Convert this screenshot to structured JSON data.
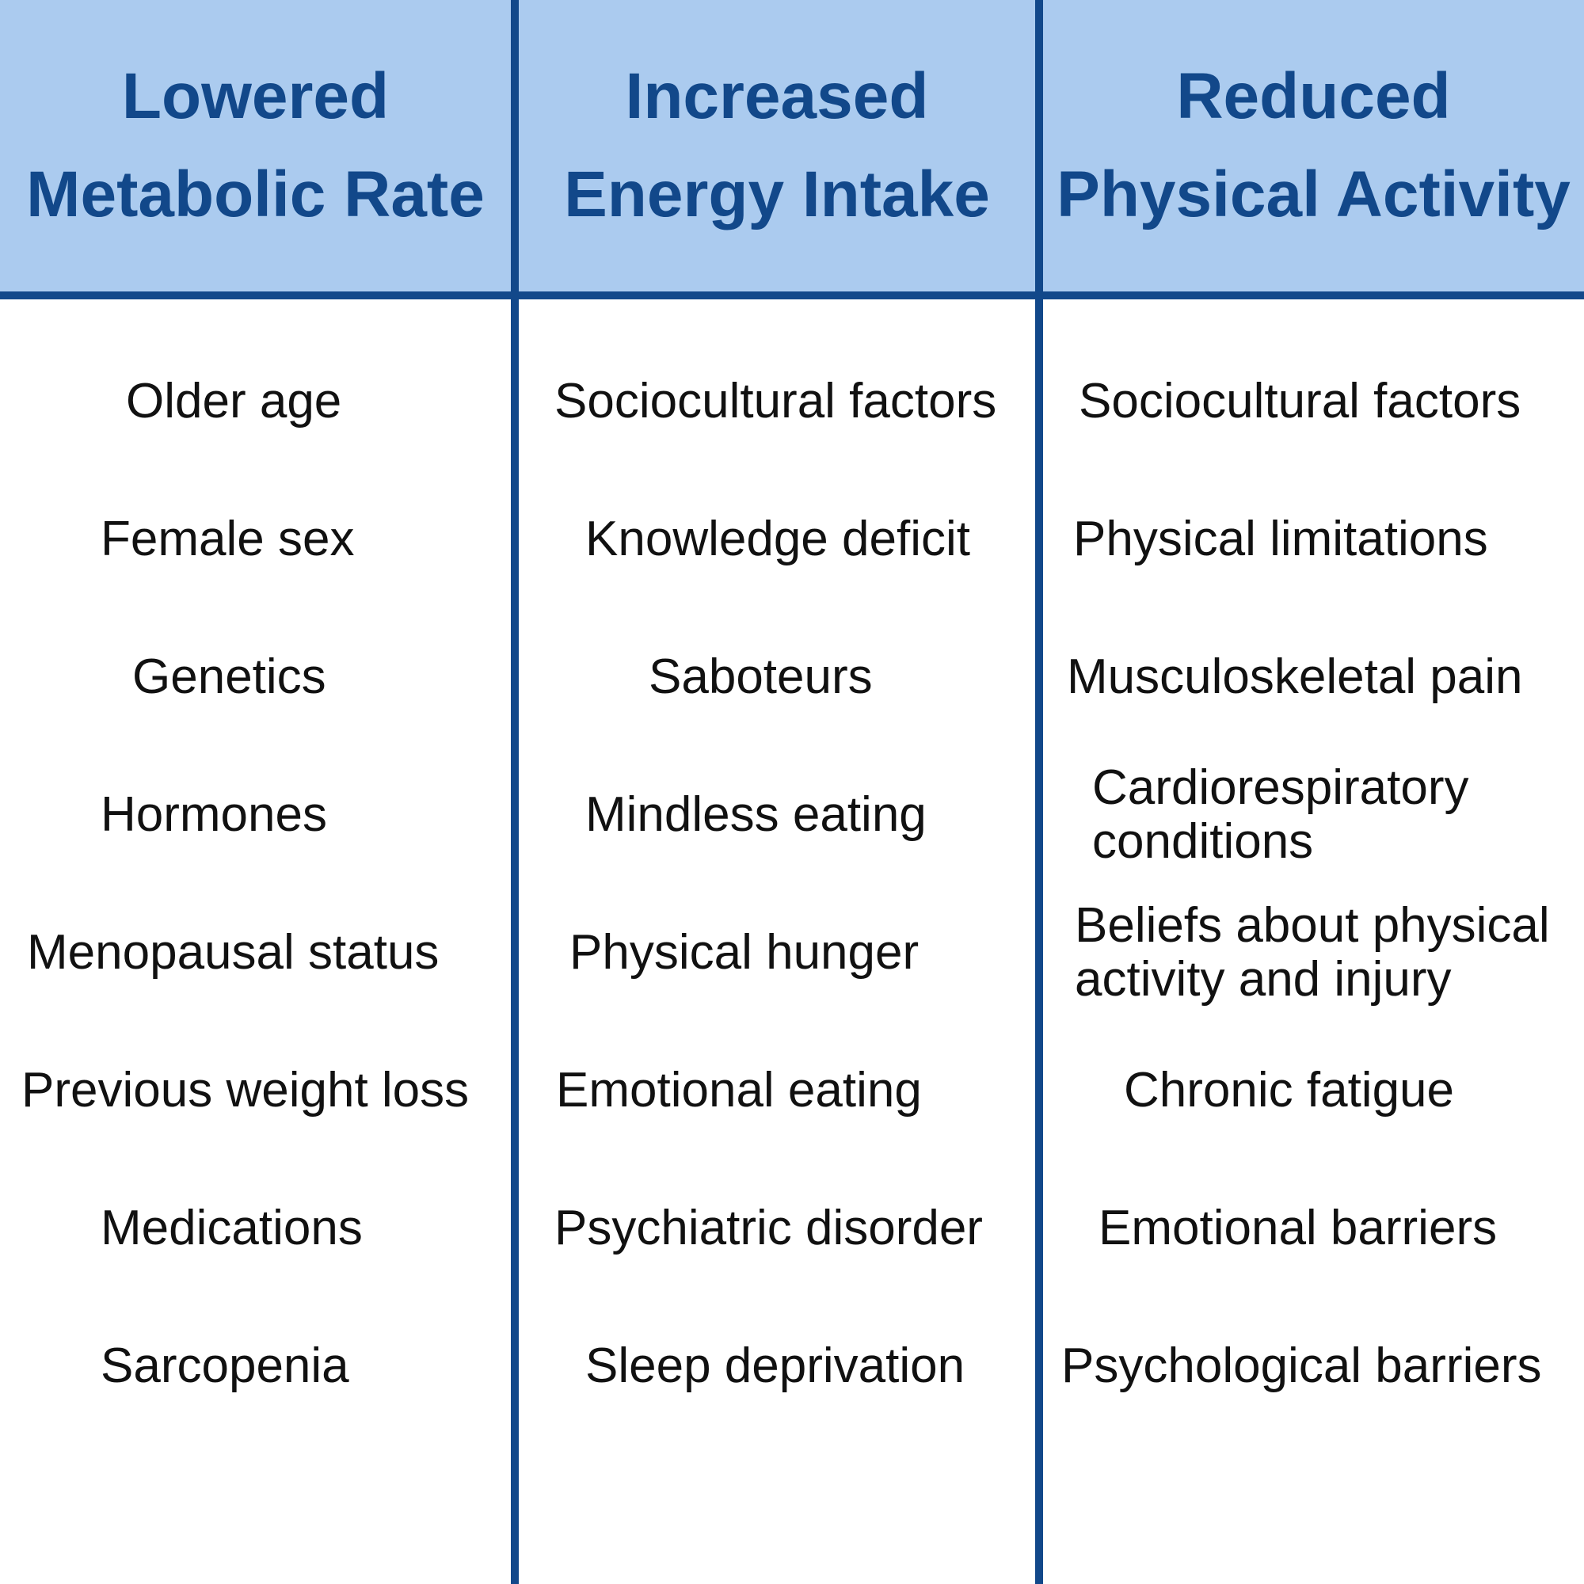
{
  "colors": {
    "header_fill": "#abcbef",
    "rule_and_text_blue": "#12488a",
    "body_text": "#111111"
  },
  "columns": [
    {
      "heading": [
        "Lowered",
        "Metabolic Rate"
      ],
      "items": [
        [
          "Older age"
        ],
        [
          "Female sex"
        ],
        [
          "Genetics"
        ],
        [
          "Hormones"
        ],
        [
          "Menopausal status"
        ],
        [
          "Previous weight loss"
        ],
        [
          "Medications"
        ],
        [
          "Sarcopenia"
        ]
      ]
    },
    {
      "heading": [
        "Increased",
        "Energy Intake"
      ],
      "items": [
        [
          "Sociocultural factors"
        ],
        [
          "Knowledge deficit"
        ],
        [
          "Saboteurs"
        ],
        [
          "Mindless eating"
        ],
        [
          "Physical hunger"
        ],
        [
          "Emotional eating"
        ],
        [
          "Psychiatric disorder"
        ],
        [
          "Sleep deprivation"
        ]
      ]
    },
    {
      "heading": [
        "Reduced",
        "Physical Activity"
      ],
      "items": [
        [
          "Sociocultural factors"
        ],
        [
          "Physical limitations"
        ],
        [
          "Musculoskeletal pain"
        ],
        [
          "Cardiorespiratory",
          "conditions"
        ],
        [
          "Beliefs about physical",
          "activity and injury"
        ],
        [
          "Chronic fatigue"
        ],
        [
          "Emotional barriers"
        ],
        [
          "Psychological barriers"
        ]
      ]
    }
  ]
}
